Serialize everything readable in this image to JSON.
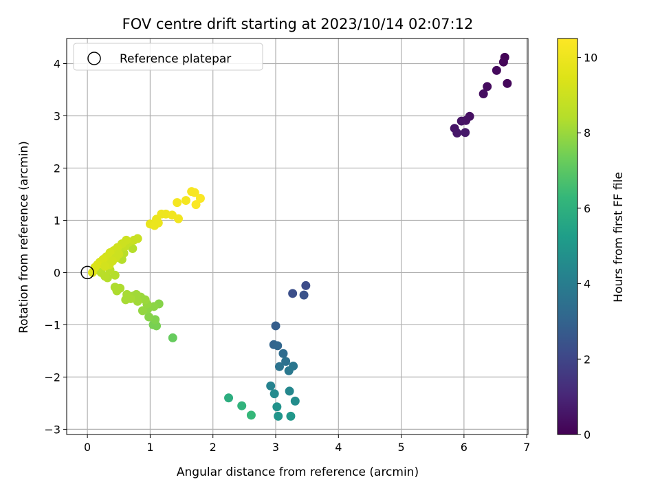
{
  "chart_data": {
    "type": "scatter",
    "title": "FOV centre drift starting at 2023/10/14 02:07:12",
    "xlabel": "Angular distance from reference (arcmin)",
    "ylabel": "Rotation from reference (arcmin)",
    "xlim": [
      -0.33,
      7.02
    ],
    "ylim": [
      -3.1,
      4.48
    ],
    "xticks": [
      0,
      1,
      2,
      3,
      4,
      5,
      6,
      7
    ],
    "yticks": [
      -3,
      -2,
      -1,
      0,
      1,
      2,
      3,
      4
    ],
    "grid": true,
    "legend": {
      "placement": "top-left",
      "entries": [
        "Reference platepar"
      ]
    },
    "reference_point": {
      "x": 0,
      "y": 0,
      "label": "Reference platepar"
    },
    "colorbar": {
      "label": "Hours from first FF file",
      "colormap": "viridis",
      "range": [
        0,
        10.5
      ],
      "ticks": [
        0,
        2,
        4,
        6,
        8,
        10
      ]
    },
    "points": [
      {
        "x": 6.65,
        "y": 4.12,
        "c": 0.1
      },
      {
        "x": 6.63,
        "y": 4.03,
        "c": 0.15
      },
      {
        "x": 6.69,
        "y": 3.62,
        "c": 0.2
      },
      {
        "x": 6.52,
        "y": 3.87,
        "c": 0.25
      },
      {
        "x": 6.37,
        "y": 3.56,
        "c": 0.3
      },
      {
        "x": 6.31,
        "y": 3.42,
        "c": 0.35
      },
      {
        "x": 6.09,
        "y": 2.99,
        "c": 0.4
      },
      {
        "x": 6.03,
        "y": 2.91,
        "c": 0.45
      },
      {
        "x": 5.96,
        "y": 2.9,
        "c": 0.5
      },
      {
        "x": 5.85,
        "y": 2.76,
        "c": 0.55
      },
      {
        "x": 5.89,
        "y": 2.67,
        "c": 0.6
      },
      {
        "x": 6.02,
        "y": 2.68,
        "c": 0.65
      },
      {
        "x": 3.48,
        "y": -0.25,
        "c": 2.2
      },
      {
        "x": 3.27,
        "y": -0.4,
        "c": 2.3
      },
      {
        "x": 3.45,
        "y": -0.43,
        "c": 2.4
      },
      {
        "x": 3.0,
        "y": -1.02,
        "c": 2.8
      },
      {
        "x": 2.97,
        "y": -1.38,
        "c": 3.0
      },
      {
        "x": 3.03,
        "y": -1.4,
        "c": 3.1
      },
      {
        "x": 3.12,
        "y": -1.55,
        "c": 3.3
      },
      {
        "x": 3.16,
        "y": -1.7,
        "c": 3.5
      },
      {
        "x": 3.06,
        "y": -1.8,
        "c": 3.6
      },
      {
        "x": 3.28,
        "y": -1.79,
        "c": 3.7
      },
      {
        "x": 3.21,
        "y": -1.88,
        "c": 3.8
      },
      {
        "x": 2.92,
        "y": -2.17,
        "c": 4.2
      },
      {
        "x": 3.22,
        "y": -2.27,
        "c": 4.4
      },
      {
        "x": 2.98,
        "y": -2.32,
        "c": 4.5
      },
      {
        "x": 3.31,
        "y": -2.46,
        "c": 4.6
      },
      {
        "x": 3.02,
        "y": -2.57,
        "c": 4.8
      },
      {
        "x": 3.04,
        "y": -2.75,
        "c": 4.9
      },
      {
        "x": 3.24,
        "y": -2.75,
        "c": 5.0
      },
      {
        "x": 2.25,
        "y": -2.4,
        "c": 5.9
      },
      {
        "x": 2.46,
        "y": -2.55,
        "c": 6.1
      },
      {
        "x": 2.61,
        "y": -2.73,
        "c": 6.3
      },
      {
        "x": 1.36,
        "y": -1.25,
        "c": 7.2
      },
      {
        "x": 1.1,
        "y": -1.02,
        "c": 7.5
      },
      {
        "x": 1.05,
        "y": -1.0,
        "c": 7.5
      },
      {
        "x": 1.08,
        "y": -0.9,
        "c": 7.6
      },
      {
        "x": 0.98,
        "y": -0.85,
        "c": 7.7
      },
      {
        "x": 1.14,
        "y": -0.6,
        "c": 7.7
      },
      {
        "x": 1.06,
        "y": -0.65,
        "c": 7.8
      },
      {
        "x": 0.96,
        "y": -0.7,
        "c": 7.8
      },
      {
        "x": 0.88,
        "y": -0.73,
        "c": 7.9
      },
      {
        "x": 0.95,
        "y": -0.6,
        "c": 7.9
      },
      {
        "x": 0.92,
        "y": -0.52,
        "c": 8.0
      },
      {
        "x": 0.85,
        "y": -0.47,
        "c": 8.0
      },
      {
        "x": 0.78,
        "y": -0.42,
        "c": 8.1
      },
      {
        "x": 0.73,
        "y": -0.45,
        "c": 8.1
      },
      {
        "x": 0.8,
        "y": -0.55,
        "c": 8.1
      },
      {
        "x": 0.69,
        "y": -0.5,
        "c": 8.2
      },
      {
        "x": 0.63,
        "y": -0.42,
        "c": 8.2
      },
      {
        "x": 0.61,
        "y": -0.52,
        "c": 8.2
      },
      {
        "x": 0.52,
        "y": -0.3,
        "c": 8.3
      },
      {
        "x": 0.47,
        "y": -0.35,
        "c": 8.3
      },
      {
        "x": 0.44,
        "y": -0.28,
        "c": 8.3
      },
      {
        "x": 0.32,
        "y": -0.1,
        "c": 8.4
      },
      {
        "x": 0.44,
        "y": -0.05,
        "c": 8.4
      },
      {
        "x": 0.36,
        "y": 0.05,
        "c": 8.5
      },
      {
        "x": 0.28,
        "y": -0.07,
        "c": 8.5
      },
      {
        "x": 0.22,
        "y": 0.0,
        "c": 8.5
      },
      {
        "x": 0.15,
        "y": 0.05,
        "c": 8.6
      },
      {
        "x": 0.55,
        "y": 0.25,
        "c": 8.4
      },
      {
        "x": 0.72,
        "y": 0.46,
        "c": 8.4
      },
      {
        "x": 0.58,
        "y": 0.37,
        "c": 8.5
      },
      {
        "x": 0.52,
        "y": 0.45,
        "c": 8.7
      },
      {
        "x": 0.6,
        "y": 0.5,
        "c": 8.8
      },
      {
        "x": 0.66,
        "y": 0.58,
        "c": 8.8
      },
      {
        "x": 0.74,
        "y": 0.62,
        "c": 8.9
      },
      {
        "x": 0.8,
        "y": 0.65,
        "c": 8.9
      },
      {
        "x": 0.62,
        "y": 0.62,
        "c": 9.0
      },
      {
        "x": 0.55,
        "y": 0.55,
        "c": 9.0
      },
      {
        "x": 0.48,
        "y": 0.48,
        "c": 9.1
      },
      {
        "x": 0.42,
        "y": 0.42,
        "c": 9.1
      },
      {
        "x": 0.36,
        "y": 0.38,
        "c": 9.2
      },
      {
        "x": 0.3,
        "y": 0.3,
        "c": 9.2
      },
      {
        "x": 0.25,
        "y": 0.25,
        "c": 9.3
      },
      {
        "x": 0.2,
        "y": 0.2,
        "c": 9.3
      },
      {
        "x": 0.16,
        "y": 0.15,
        "c": 9.4
      },
      {
        "x": 0.12,
        "y": 0.1,
        "c": 9.4
      },
      {
        "x": 0.08,
        "y": 0.0,
        "c": 9.5
      },
      {
        "x": 0.5,
        "y": 0.35,
        "c": 9.0
      },
      {
        "x": 0.45,
        "y": 0.28,
        "c": 9.0
      },
      {
        "x": 0.4,
        "y": 0.22,
        "c": 9.1
      },
      {
        "x": 0.35,
        "y": 0.15,
        "c": 9.1
      },
      {
        "x": 0.28,
        "y": 0.12,
        "c": 9.2
      },
      {
        "x": 1.0,
        "y": 0.93,
        "c": 9.8
      },
      {
        "x": 1.07,
        "y": 0.9,
        "c": 9.9
      },
      {
        "x": 1.1,
        "y": 1.02,
        "c": 9.9
      },
      {
        "x": 1.13,
        "y": 0.95,
        "c": 9.9
      },
      {
        "x": 1.18,
        "y": 1.12,
        "c": 10.0
      },
      {
        "x": 1.25,
        "y": 1.12,
        "c": 10.0
      },
      {
        "x": 1.35,
        "y": 1.1,
        "c": 10.1
      },
      {
        "x": 1.45,
        "y": 1.03,
        "c": 10.1
      },
      {
        "x": 1.43,
        "y": 1.34,
        "c": 10.2
      },
      {
        "x": 1.57,
        "y": 1.38,
        "c": 10.2
      },
      {
        "x": 1.66,
        "y": 1.55,
        "c": 10.3
      },
      {
        "x": 1.71,
        "y": 1.53,
        "c": 10.3
      },
      {
        "x": 1.8,
        "y": 1.42,
        "c": 10.4
      },
      {
        "x": 1.73,
        "y": 1.3,
        "c": 10.4
      }
    ]
  }
}
